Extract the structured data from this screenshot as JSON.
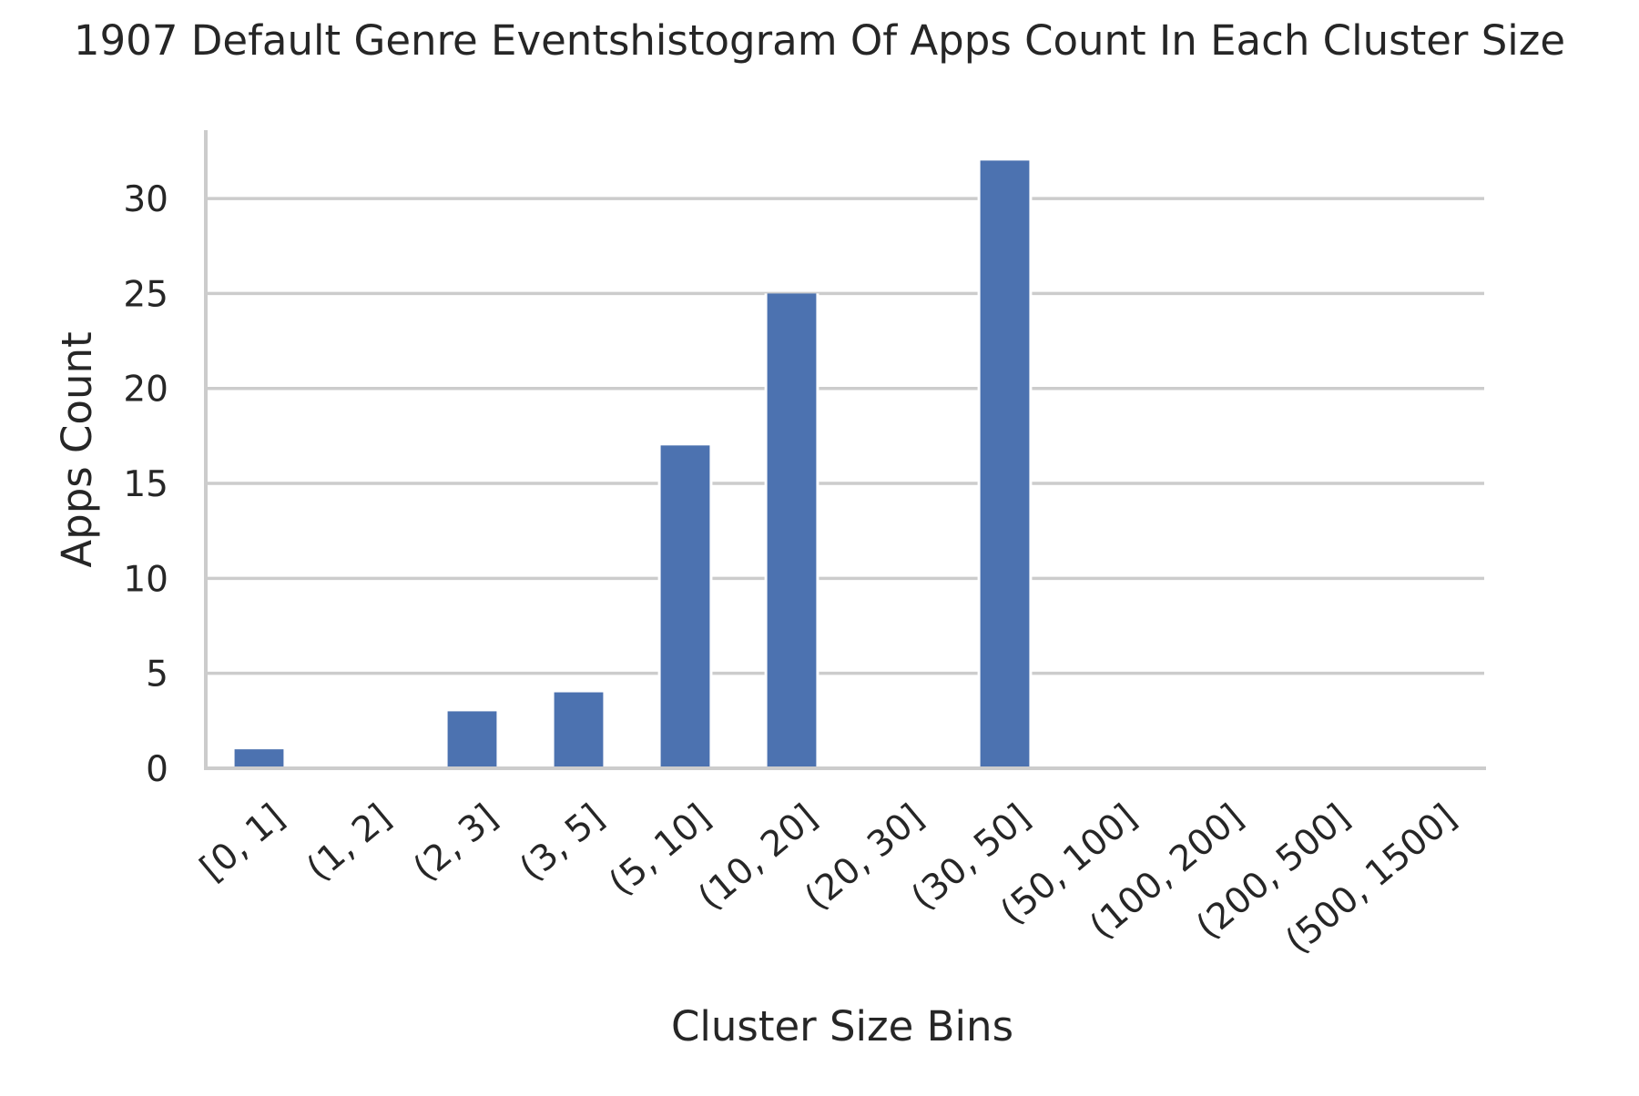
{
  "chart_data": {
    "type": "bar",
    "title": "1907 Default Genre Eventshistogram Of Apps Count In Each Cluster Size",
    "xlabel": "Cluster Size Bins",
    "ylabel": "Apps Count",
    "categories": [
      "[0, 1]",
      "(1, 2]",
      "(2, 3]",
      "(3, 5]",
      "(5, 10]",
      "(10, 20]",
      "(20, 30]",
      "(30, 50]",
      "(50, 100]",
      "(100, 200]",
      "(200, 500]",
      "(500, 1500]"
    ],
    "values": [
      1,
      0,
      3,
      4,
      17,
      25,
      0,
      32,
      0,
      0,
      0,
      0
    ],
    "ylim": [
      0,
      33.6
    ],
    "yticks": [
      "0",
      "5",
      "10",
      "15",
      "20",
      "25",
      "30"
    ],
    "grid": "horizontal",
    "bar_color": "#4c72b0",
    "legend": "none"
  }
}
